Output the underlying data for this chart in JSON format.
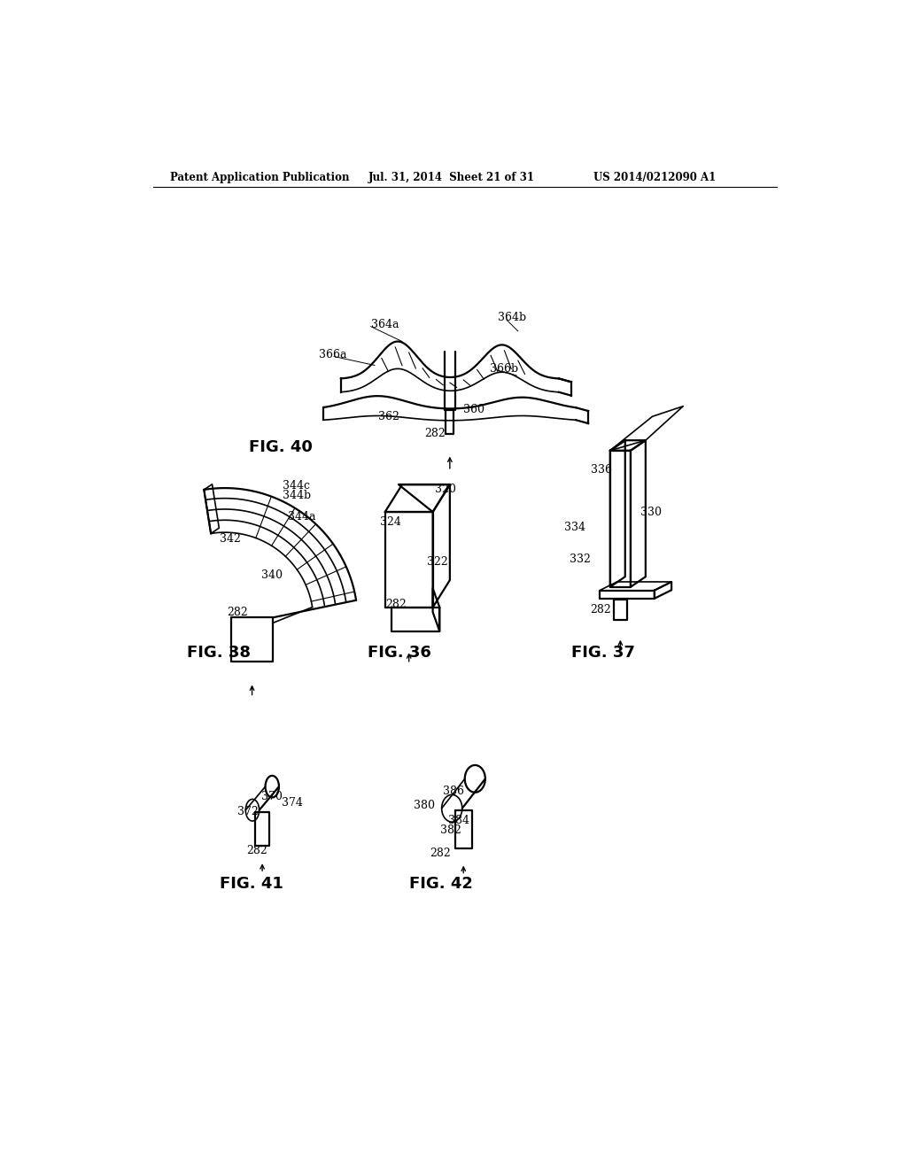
{
  "bg_color": "#ffffff",
  "header_left": "Patent Application Publication",
  "header_mid": "Jul. 31, 2014  Sheet 21 of 31",
  "header_right": "US 2014/0212090 A1",
  "fig_labels": {
    "fig40": "FIG. 40",
    "fig38": "FIG. 38",
    "fig36": "FIG. 36",
    "fig37": "FIG. 37",
    "fig41": "FIG. 41",
    "fig42": "FIG. 42"
  },
  "text_color": "#000000",
  "line_color": "#000000",
  "line_width": 1.2,
  "lw_thick": 1.6
}
